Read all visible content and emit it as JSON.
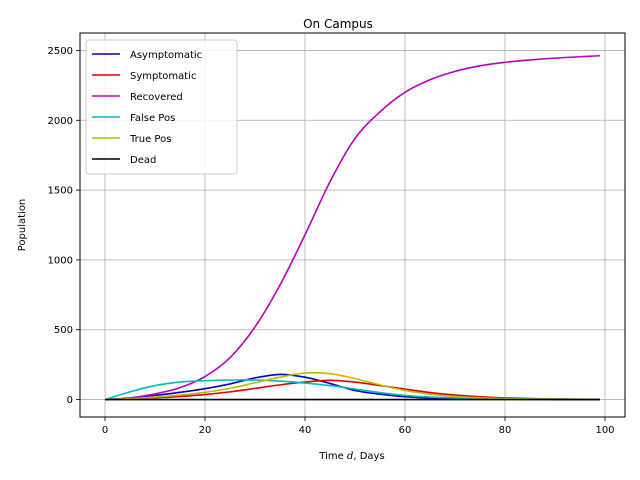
{
  "chart_data": {
    "type": "line",
    "title": "On Campus",
    "xlabel_prefix": "Time ",
    "xlabel_var": "d",
    "xlabel_suffix": ", Days",
    "ylabel": "Population",
    "xlim": [
      -5,
      104
    ],
    "ylim": [
      -125,
      2625
    ],
    "xticks": [
      0,
      20,
      40,
      60,
      80,
      100
    ],
    "yticks": [
      0,
      500,
      1000,
      1500,
      2000,
      2500
    ],
    "grid": true,
    "legend_position": "top-left",
    "x": [
      0,
      5,
      10,
      15,
      20,
      25,
      30,
      35,
      40,
      45,
      50,
      55,
      60,
      65,
      70,
      75,
      80,
      85,
      90,
      95,
      99
    ],
    "series": [
      {
        "name": "Asymptomatic",
        "color": "#0000cc",
        "values": [
          0,
          10,
          30,
          52,
          78,
          112,
          155,
          180,
          160,
          115,
          65,
          38,
          20,
          10,
          6,
          4,
          3,
          2,
          1,
          1,
          1
        ]
      },
      {
        "name": "Symptomatic",
        "color": "#dd0000",
        "values": [
          0,
          5,
          12,
          22,
          36,
          55,
          80,
          105,
          125,
          138,
          125,
          100,
          75,
          50,
          32,
          20,
          12,
          7,
          4,
          2,
          2
        ]
      },
      {
        "name": "Recovered",
        "color": "#bb00bb",
        "values": [
          0,
          12,
          40,
          85,
          165,
          300,
          520,
          820,
          1180,
          1560,
          1870,
          2060,
          2200,
          2290,
          2350,
          2390,
          2415,
          2432,
          2445,
          2455,
          2462
        ]
      },
      {
        "name": "False Pos",
        "color": "#00bbbb",
        "values": [
          0,
          55,
          100,
          125,
          135,
          140,
          140,
          132,
          118,
          100,
          75,
          50,
          30,
          18,
          12,
          8,
          6,
          5,
          4,
          3,
          3
        ]
      },
      {
        "name": "True Pos",
        "color": "#bbbb00",
        "values": [
          0,
          6,
          18,
          32,
          52,
          80,
          120,
          160,
          190,
          185,
          150,
          105,
          65,
          38,
          22,
          12,
          7,
          4,
          3,
          2,
          2
        ]
      },
      {
        "name": "Dead",
        "color": "#000000",
        "values": [
          0,
          0,
          0,
          0,
          0,
          0,
          0,
          0,
          0,
          0,
          0,
          0,
          0,
          0,
          0,
          0,
          0,
          0,
          0,
          0,
          0
        ]
      }
    ]
  }
}
